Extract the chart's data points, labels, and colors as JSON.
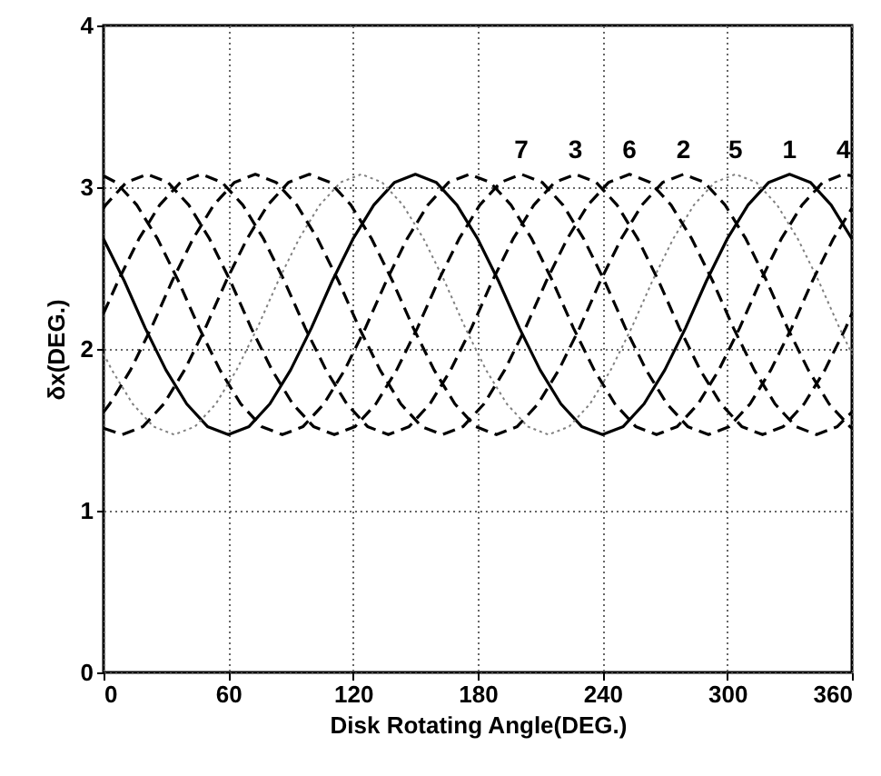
{
  "chart_data": {
    "type": "line",
    "xlabel": "Disk Rotating Angle(DEG.)",
    "ylabel": "δx(DEG.)",
    "xlim": [
      0,
      360
    ],
    "xticks": [
      0,
      60,
      120,
      180,
      240,
      300,
      360
    ],
    "ylim": [
      0,
      4
    ],
    "yticks": [
      0,
      1,
      2,
      3,
      4
    ],
    "grid": true,
    "marker": "none",
    "series": [
      {
        "name": "1",
        "color": "#000000",
        "line_style": "solid",
        "x": [
          0,
          10,
          20,
          30,
          40,
          50,
          60,
          70,
          80,
          90,
          100,
          110,
          120,
          130,
          140,
          150,
          160,
          170,
          180,
          190,
          200,
          210,
          220,
          230,
          240,
          250,
          260,
          270,
          280,
          290,
          300,
          310,
          320,
          330,
          340,
          350,
          360
        ],
        "values": [
          2.68,
          2.42,
          2.13,
          1.87,
          1.66,
          1.52,
          1.47,
          1.52,
          1.66,
          1.87,
          2.13,
          2.42,
          2.68,
          2.89,
          3.03,
          3.08,
          3.03,
          2.89,
          2.68,
          2.42,
          2.13,
          1.87,
          1.66,
          1.52,
          1.47,
          1.52,
          1.66,
          1.87,
          2.13,
          2.42,
          2.68,
          2.89,
          3.03,
          3.08,
          3.03,
          2.89,
          2.68
        ]
      },
      {
        "name": "2",
        "color": "#000000",
        "line_style": "dashed",
        "x": [
          0,
          9,
          19,
          29,
          39,
          49,
          59,
          69,
          79,
          89,
          99,
          109,
          119,
          129,
          139,
          149,
          159,
          169,
          179,
          189,
          199,
          209,
          219,
          229,
          239,
          249,
          259,
          269,
          279,
          289,
          299,
          309,
          319,
          329,
          339,
          349,
          359,
          360
        ],
        "values": [
          1.51,
          1.47,
          1.52,
          1.66,
          1.87,
          2.13,
          2.42,
          2.68,
          2.89,
          3.03,
          3.08,
          3.03,
          2.89,
          2.68,
          2.42,
          2.13,
          1.87,
          1.66,
          1.52,
          1.47,
          1.52,
          1.66,
          1.87,
          2.13,
          2.42,
          2.68,
          2.89,
          3.03,
          3.08,
          3.03,
          2.89,
          2.68,
          2.42,
          2.13,
          1.87,
          1.66,
          1.52,
          1.51
        ]
      },
      {
        "name": "3",
        "color": "#000000",
        "line_style": "dashed",
        "x": [
          0,
          7,
          17,
          27,
          37,
          47,
          57,
          67,
          77,
          87,
          97,
          107,
          117,
          127,
          137,
          147,
          157,
          167,
          177,
          187,
          197,
          207,
          217,
          227,
          237,
          247,
          257,
          267,
          277,
          287,
          297,
          307,
          317,
          327,
          337,
          347,
          357,
          360
        ],
        "values": [
          2.22,
          2.42,
          2.68,
          2.89,
          3.03,
          3.08,
          3.03,
          2.89,
          2.68,
          2.42,
          2.13,
          1.87,
          1.66,
          1.52,
          1.47,
          1.52,
          1.66,
          1.87,
          2.13,
          2.42,
          2.68,
          2.89,
          3.03,
          3.08,
          3.03,
          2.89,
          2.68,
          2.42,
          2.13,
          1.87,
          1.66,
          1.52,
          1.47,
          1.52,
          1.66,
          1.87,
          2.13,
          2.22
        ]
      },
      {
        "name": "4",
        "color": "#000000",
        "line_style": "dashed",
        "x": [
          0,
          6,
          16,
          26,
          36,
          46,
          56,
          66,
          76,
          86,
          96,
          106,
          116,
          126,
          136,
          146,
          156,
          166,
          176,
          186,
          196,
          206,
          216,
          226,
          236,
          246,
          256,
          266,
          276,
          286,
          296,
          306,
          316,
          326,
          336,
          346,
          356,
          360
        ],
        "values": [
          3.07,
          3.03,
          2.89,
          2.68,
          2.42,
          2.13,
          1.87,
          1.66,
          1.52,
          1.47,
          1.52,
          1.66,
          1.87,
          2.13,
          2.42,
          2.68,
          2.89,
          3.03,
          3.08,
          3.03,
          2.89,
          2.68,
          2.42,
          2.13,
          1.87,
          1.66,
          1.52,
          1.47,
          1.52,
          1.66,
          1.87,
          2.13,
          2.42,
          2.68,
          2.89,
          3.03,
          3.08,
          3.07
        ]
      },
      {
        "name": "5",
        "color": "#808080",
        "line_style": "dotted",
        "x": [
          0,
          4,
          14,
          24,
          34,
          44,
          54,
          64,
          74,
          84,
          94,
          104,
          114,
          124,
          134,
          144,
          154,
          164,
          174,
          184,
          194,
          204,
          214,
          224,
          234,
          244,
          254,
          264,
          274,
          284,
          294,
          304,
          314,
          324,
          334,
          344,
          354,
          360
        ],
        "values": [
          1.97,
          1.87,
          1.66,
          1.52,
          1.47,
          1.52,
          1.66,
          1.87,
          2.13,
          2.42,
          2.68,
          2.89,
          3.03,
          3.08,
          3.03,
          2.89,
          2.68,
          2.42,
          2.13,
          1.87,
          1.66,
          1.52,
          1.47,
          1.52,
          1.66,
          1.87,
          2.13,
          2.42,
          2.68,
          2.89,
          3.03,
          3.08,
          3.03,
          2.89,
          2.68,
          2.42,
          2.13,
          1.97
        ]
      },
      {
        "name": "6",
        "color": "#000000",
        "line_style": "dashed",
        "x": [
          0,
          3,
          13,
          23,
          33,
          43,
          53,
          63,
          73,
          83,
          93,
          103,
          113,
          123,
          133,
          143,
          153,
          163,
          173,
          183,
          193,
          203,
          213,
          223,
          233,
          243,
          253,
          263,
          273,
          283,
          293,
          303,
          313,
          323,
          333,
          343,
          353,
          360
        ],
        "values": [
          1.61,
          1.66,
          1.87,
          2.13,
          2.42,
          2.68,
          2.89,
          3.03,
          3.08,
          3.03,
          2.89,
          2.68,
          2.42,
          2.13,
          1.87,
          1.66,
          1.52,
          1.47,
          1.52,
          1.66,
          1.87,
          2.13,
          2.42,
          2.68,
          2.89,
          3.03,
          3.08,
          3.03,
          2.89,
          2.68,
          2.42,
          2.13,
          1.87,
          1.66,
          1.52,
          1.47,
          1.52,
          1.61
        ]
      },
      {
        "name": "7",
        "color": "#000000",
        "line_style": "dashed",
        "x": [
          0,
          1,
          11,
          21,
          31,
          41,
          51,
          61,
          71,
          81,
          91,
          101,
          111,
          121,
          131,
          141,
          151,
          161,
          171,
          181,
          191,
          201,
          211,
          221,
          231,
          241,
          251,
          261,
          271,
          281,
          291,
          301,
          311,
          321,
          331,
          341,
          351,
          360
        ],
        "values": [
          2.87,
          2.89,
          3.03,
          3.08,
          3.03,
          2.89,
          2.68,
          2.42,
          2.13,
          1.87,
          1.66,
          1.52,
          1.47,
          1.52,
          1.66,
          1.87,
          2.13,
          2.42,
          2.68,
          2.89,
          3.03,
          3.08,
          3.03,
          2.89,
          2.68,
          2.42,
          2.13,
          1.87,
          1.66,
          1.52,
          1.47,
          1.52,
          1.66,
          1.87,
          2.13,
          2.42,
          2.68,
          2.87
        ]
      }
    ]
  }
}
